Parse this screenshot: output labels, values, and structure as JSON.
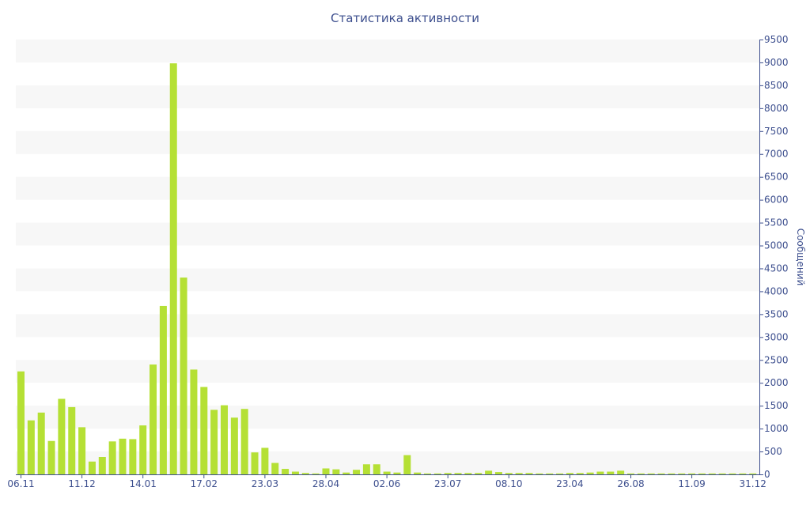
{
  "chart_data": {
    "type": "bar",
    "title": "Статистика активности",
    "ylabel": "Сообщений",
    "xlabel": "",
    "ylim": [
      0,
      9500
    ],
    "y_ticks": [
      0,
      500,
      1000,
      1500,
      2000,
      2500,
      3000,
      3500,
      4000,
      4500,
      5000,
      5500,
      6000,
      6500,
      7000,
      7500,
      8000,
      8500,
      9000,
      9500
    ],
    "x_tick_labels": [
      {
        "index": 0,
        "label": "06.11"
      },
      {
        "index": 6,
        "label": "11.12"
      },
      {
        "index": 12,
        "label": "14.01"
      },
      {
        "index": 18,
        "label": "17.02"
      },
      {
        "index": 24,
        "label": "23.03"
      },
      {
        "index": 30,
        "label": "28.04"
      },
      {
        "index": 36,
        "label": "02.06"
      },
      {
        "index": 42,
        "label": "23.07"
      },
      {
        "index": 48,
        "label": "08.10"
      },
      {
        "index": 54,
        "label": "23.04"
      },
      {
        "index": 60,
        "label": "26.08"
      },
      {
        "index": 66,
        "label": "11.09"
      },
      {
        "index": 72,
        "label": "31.12"
      }
    ],
    "bar_color": "#b5e035",
    "band_color": "#f7f7f7",
    "axis_color": "#3d4f8e",
    "grid": "alternating bands",
    "values": [
      2250,
      1180,
      1350,
      730,
      1650,
      1470,
      1030,
      280,
      380,
      720,
      780,
      770,
      1070,
      2400,
      3680,
      8980,
      4300,
      2290,
      1910,
      1410,
      1510,
      1240,
      1430,
      480,
      580,
      250,
      120,
      60,
      30,
      20,
      130,
      110,
      40,
      100,
      220,
      220,
      60,
      40,
      420,
      40,
      20,
      20,
      30,
      30,
      30,
      30,
      80,
      50,
      30,
      30,
      30,
      20,
      20,
      20,
      30,
      30,
      40,
      60,
      60,
      80,
      20,
      20,
      20,
      20,
      20,
      20,
      20,
      20,
      20,
      20,
      20,
      20,
      20
    ]
  }
}
